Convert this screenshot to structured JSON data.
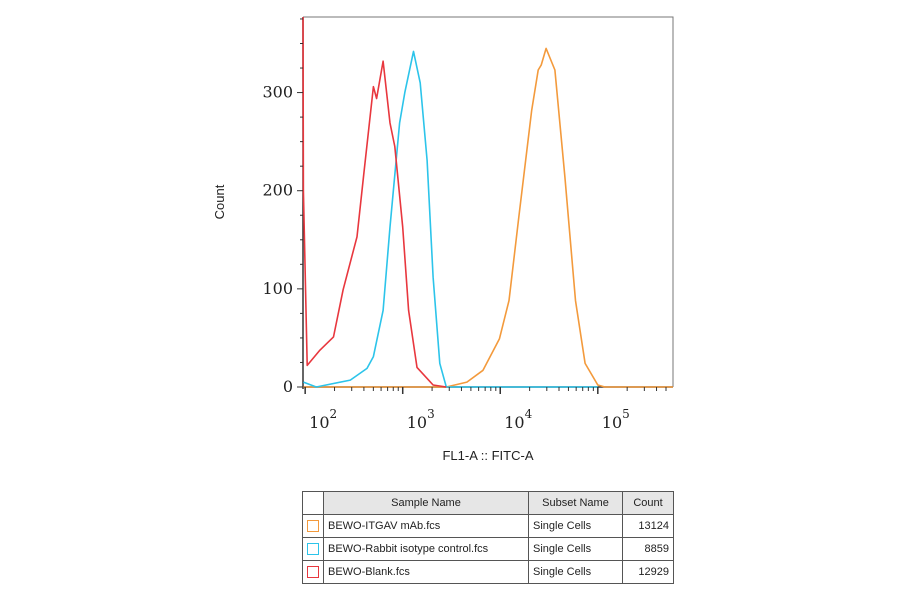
{
  "chart_data": {
    "type": "line",
    "xlabel": "FL1-A :: FITC-A",
    "ylabel": "Count",
    "xscale": "log",
    "xlim": [
      95,
      590000
    ],
    "ylim": [
      0,
      377
    ],
    "x_ticks": [
      {
        "base": "10",
        "exp": "2",
        "value": 100
      },
      {
        "base": "10",
        "exp": "3",
        "value": 1000
      },
      {
        "base": "10",
        "exp": "4",
        "value": 10000
      },
      {
        "base": "10",
        "exp": "5",
        "value": 100000
      }
    ],
    "y_ticks": [
      0,
      100,
      200,
      300
    ],
    "grid": false,
    "series": [
      {
        "name": "BEWO-ITGAV mAb.fcs",
        "color": "#f39a3c",
        "x": [
          96,
          2800,
          4550,
          6650,
          9800,
          12300,
          15500,
          21000,
          24500,
          26300,
          29500,
          36300,
          46000,
          59000,
          74000,
          100000,
          118000,
          590000
        ],
        "y": [
          0,
          0,
          5,
          17,
          49,
          88,
          173,
          282,
          323,
          328,
          345,
          323,
          214,
          88,
          24,
          2,
          0,
          0
        ]
      },
      {
        "name": "BEWO-Rabbit isotype control.fcs",
        "color": "#2cc4ea",
        "x": [
          96,
          130,
          290,
          430,
          500,
          630,
          740,
          930,
          1050,
          1290,
          1510,
          1780,
          2050,
          2400,
          2800,
          100000
        ],
        "y": [
          5,
          0,
          7,
          19,
          31,
          78,
          163,
          269,
          300,
          342,
          310,
          231,
          112,
          24,
          0,
          0
        ]
      },
      {
        "name": "BEWO-Blank.fcs",
        "color": "#e8373e",
        "x": [
          95,
          96,
          105,
          140,
          195,
          245,
          340,
          400,
          500,
          540,
          630,
          740,
          830,
          1000,
          1150,
          1400,
          2050,
          2800
        ],
        "y": [
          377,
          200,
          22,
          37,
          51,
          99,
          153,
          218,
          306,
          294,
          332,
          269,
          245,
          163,
          78,
          20,
          2,
          0
        ]
      }
    ]
  },
  "legend_table": {
    "headers": [
      "Sample Name",
      "Subset Name",
      "Count"
    ],
    "rows": [
      {
        "sample": "BEWO-ITGAV mAb.fcs",
        "subset": "Single Cells",
        "count": "13124",
        "color": "#f39a3c"
      },
      {
        "sample": "BEWO-Rabbit isotype control.fcs",
        "subset": "Single Cells",
        "count": "8859",
        "color": "#2cc4ea"
      },
      {
        "sample": "BEWO-Blank.fcs",
        "subset": "Single Cells",
        "count": "12929",
        "color": "#e8373e"
      }
    ]
  }
}
